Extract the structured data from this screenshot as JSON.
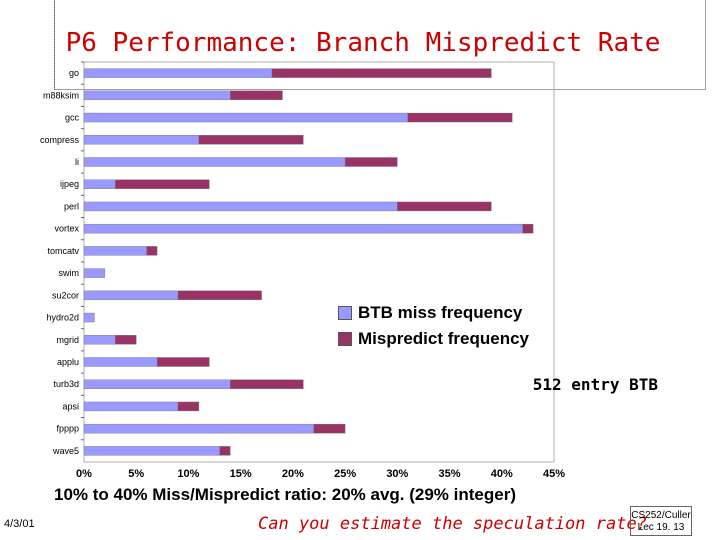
{
  "slide": {
    "title": "P6 Performance: Branch Mispredict Rate",
    "axis_note": "10% to 40% Miss/Mispredict ratio: 20% avg. (29% integer)",
    "btb_note": "512 entry BTB",
    "question": "Can you estimate the speculation rate?",
    "date": "4/3/01",
    "course_line1": "CS252/Culler",
    "course_line2": "Lec 19. 13"
  },
  "chart_data": {
    "type": "bar",
    "orientation": "horizontal",
    "stacked": true,
    "categories": [
      "go",
      "m88ksim",
      "gcc",
      "compress",
      "li",
      "ijpeg",
      "perl",
      "vortex",
      "tomcatv",
      "swim",
      "su2cor",
      "hydro2d",
      "mgrid",
      "applu",
      "turb3d",
      "apsi",
      "fpppp",
      "wave5"
    ],
    "series": [
      {
        "name": "BTB miss frequency",
        "color": "#9999ff",
        "values": [
          18,
          14,
          31,
          11,
          25,
          3,
          30,
          42,
          6,
          2,
          9,
          1,
          3,
          7,
          14,
          9,
          22,
          13
        ]
      },
      {
        "name": "Mispredict frequency",
        "color": "#993366",
        "values": [
          21,
          5,
          10,
          10,
          5,
          9,
          9,
          1,
          1,
          0,
          8,
          0,
          2,
          5,
          7,
          2,
          3,
          1
        ]
      }
    ],
    "xlim": [
      0,
      45
    ],
    "xticks": [
      "0%",
      "5%",
      "10%",
      "15%",
      "20%",
      "25%",
      "30%",
      "35%",
      "40%",
      "45%"
    ],
    "legend_position": "right",
    "grid": false
  }
}
